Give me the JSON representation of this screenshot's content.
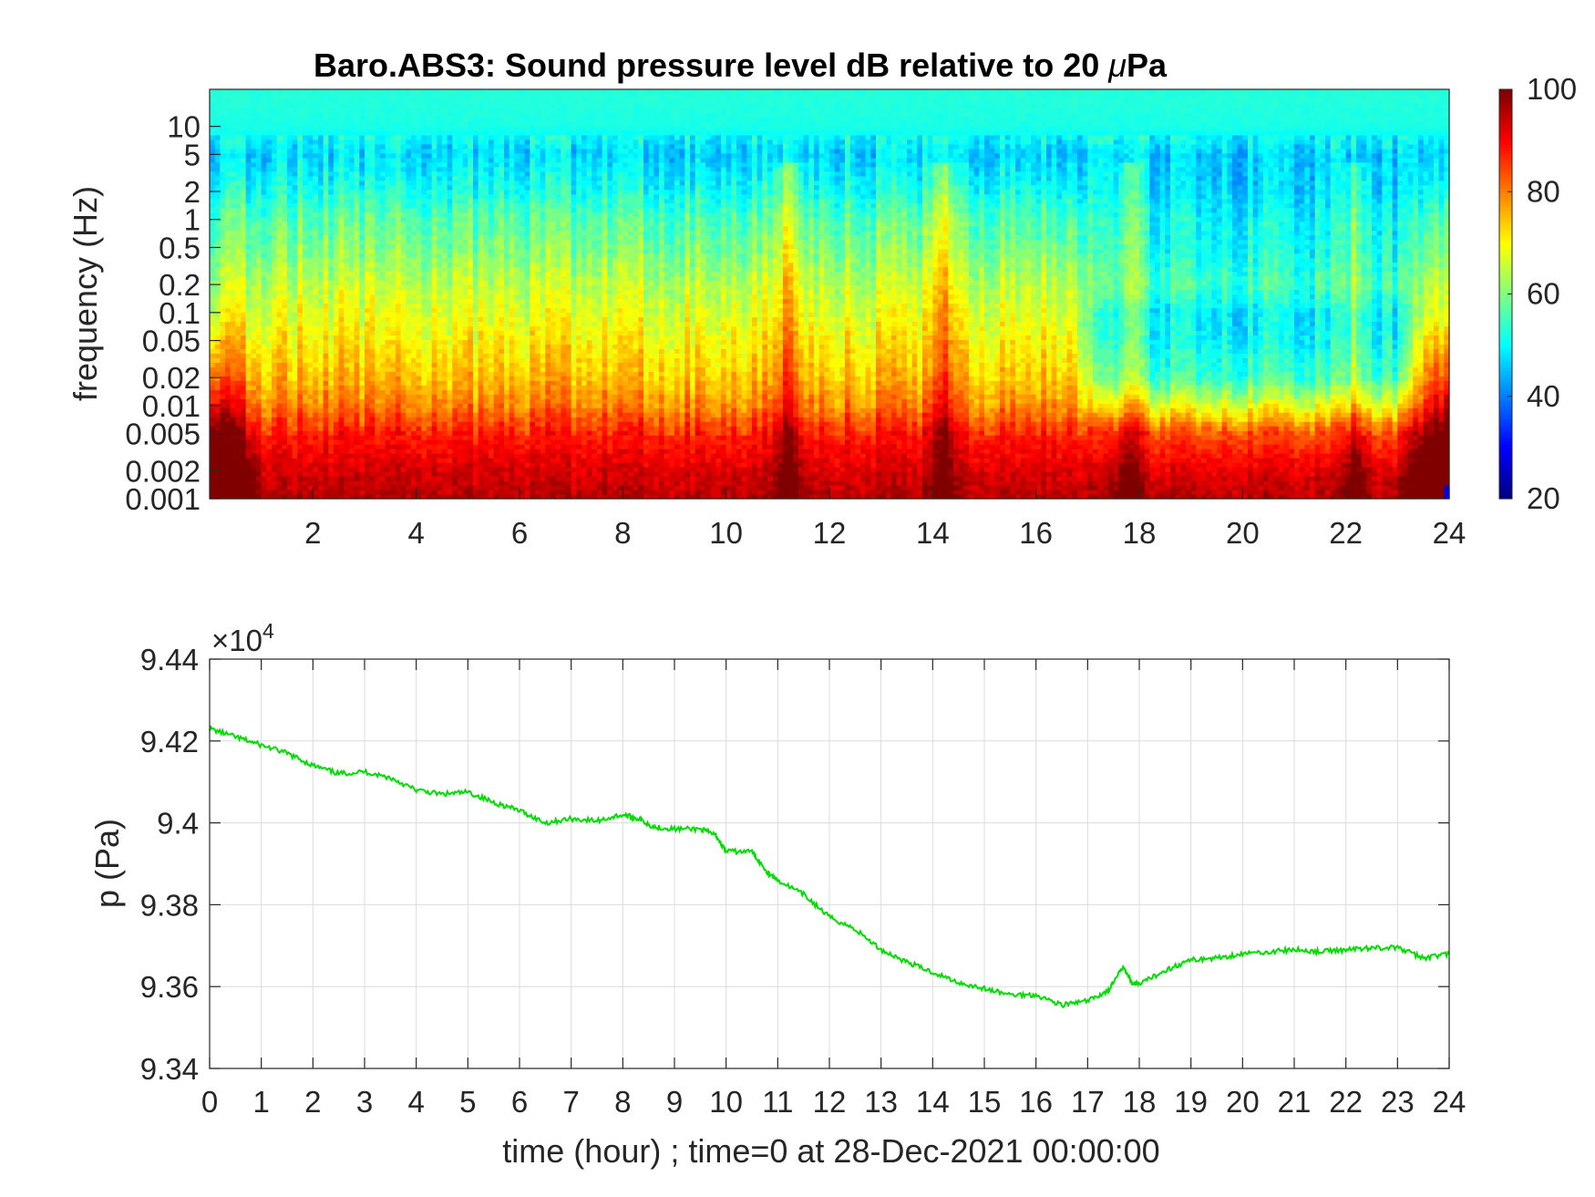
{
  "chart_data": [
    {
      "type": "heatmap",
      "title_prefix": "Baro.ABS3: Sound pressure level dB relative to 20 ",
      "title_mu": "μ",
      "title_suffix": "Pa",
      "ylabel": "frequency (Hz)",
      "xlabel": "",
      "xlim": [
        0,
        24
      ],
      "x_ticks": [
        "2",
        "4",
        "6",
        "8",
        "10",
        "12",
        "14",
        "16",
        "18",
        "20",
        "22",
        "24"
      ],
      "y_scale": "log",
      "ylim": [
        0.001,
        25
      ],
      "y_ticks": [
        {
          "value": 10,
          "label": "10"
        },
        {
          "value": 5,
          "label": "5"
        },
        {
          "value": 2,
          "label": "2"
        },
        {
          "value": 1,
          "label": "1"
        },
        {
          "value": 0.5,
          "label": "0.5"
        },
        {
          "value": 0.2,
          "label": "0.2"
        },
        {
          "value": 0.1,
          "label": "0.1"
        },
        {
          "value": 0.05,
          "label": "0.05"
        },
        {
          "value": 0.02,
          "label": "0.02"
        },
        {
          "value": 0.01,
          "label": "0.01"
        },
        {
          "value": 0.005,
          "label": "0.005"
        },
        {
          "value": 0.002,
          "label": "0.002"
        },
        {
          "value": 0.001,
          "label": "0.001"
        }
      ],
      "colormap": "jet",
      "clim": [
        20,
        100
      ],
      "colorbar_ticks": [
        "100",
        "80",
        "60",
        "40",
        "20"
      ],
      "level_profile_db": {
        "freq_hz": [
          0.001,
          0.002,
          0.005,
          0.01,
          0.02,
          0.05,
          0.1,
          0.2,
          0.5,
          1,
          2,
          5,
          10,
          25
        ],
        "typical_db": [
          96,
          93,
          88,
          80,
          75,
          71,
          68,
          65,
          60,
          57,
          52,
          47,
          52,
          53
        ],
        "quiet_period_db": [
          96,
          92,
          84,
          68,
          55,
          50,
          49,
          55,
          51,
          50,
          47,
          46,
          52,
          53
        ]
      },
      "quiet_period_hours": [
        16.8,
        23.5
      ],
      "event_hours": [
        11.2,
        14.2,
        17.8,
        22.2
      ]
    },
    {
      "type": "line",
      "xlabel": "time (hour) ; time=0 at 28-Dec-2021 00:00:00",
      "ylabel": "p (Pa)",
      "multiplier_base": "×10",
      "multiplier_exp": "4",
      "xlim": [
        0,
        24
      ],
      "ylim": [
        9.34,
        9.44
      ],
      "x_ticks": [
        "0",
        "1",
        "2",
        "3",
        "4",
        "5",
        "6",
        "7",
        "8",
        "9",
        "10",
        "11",
        "12",
        "13",
        "14",
        "15",
        "16",
        "17",
        "18",
        "19",
        "20",
        "21",
        "22",
        "23",
        "24"
      ],
      "y_ticks": [
        "9.34",
        "9.36",
        "9.38",
        "9.4",
        "9.42",
        "9.44"
      ],
      "grid": true,
      "series": [
        {
          "color": "#00dd00",
          "x": [
            0,
            0.5,
            1,
            1.5,
            2,
            2.5,
            3,
            3.5,
            4,
            4.5,
            5,
            5.5,
            6,
            6.5,
            7,
            7.5,
            8,
            8.3,
            8.6,
            9,
            9.5,
            9.8,
            10,
            10.5,
            10.8,
            11,
            11.5,
            12,
            12.5,
            13,
            13.5,
            14,
            14.5,
            15,
            15.5,
            16,
            16.5,
            17,
            17.4,
            17.7,
            17.85,
            18,
            18.5,
            19,
            19.5,
            20,
            20.5,
            21,
            21.5,
            22,
            22.5,
            23,
            23.5,
            24
          ],
          "y": [
            9.423,
            9.421,
            9.419,
            9.417,
            9.414,
            9.412,
            9.4125,
            9.411,
            9.408,
            9.407,
            9.4075,
            9.405,
            9.403,
            9.4,
            9.401,
            9.4005,
            9.402,
            9.401,
            9.399,
            9.3985,
            9.3985,
            9.397,
            9.393,
            9.393,
            9.388,
            9.386,
            9.3825,
            9.377,
            9.374,
            9.369,
            9.366,
            9.3635,
            9.361,
            9.3595,
            9.358,
            9.358,
            9.3555,
            9.3565,
            9.359,
            9.365,
            9.361,
            9.3605,
            9.364,
            9.3665,
            9.367,
            9.368,
            9.3685,
            9.369,
            9.3685,
            9.369,
            9.3695,
            9.3695,
            9.367,
            9.368
          ]
        }
      ]
    }
  ]
}
